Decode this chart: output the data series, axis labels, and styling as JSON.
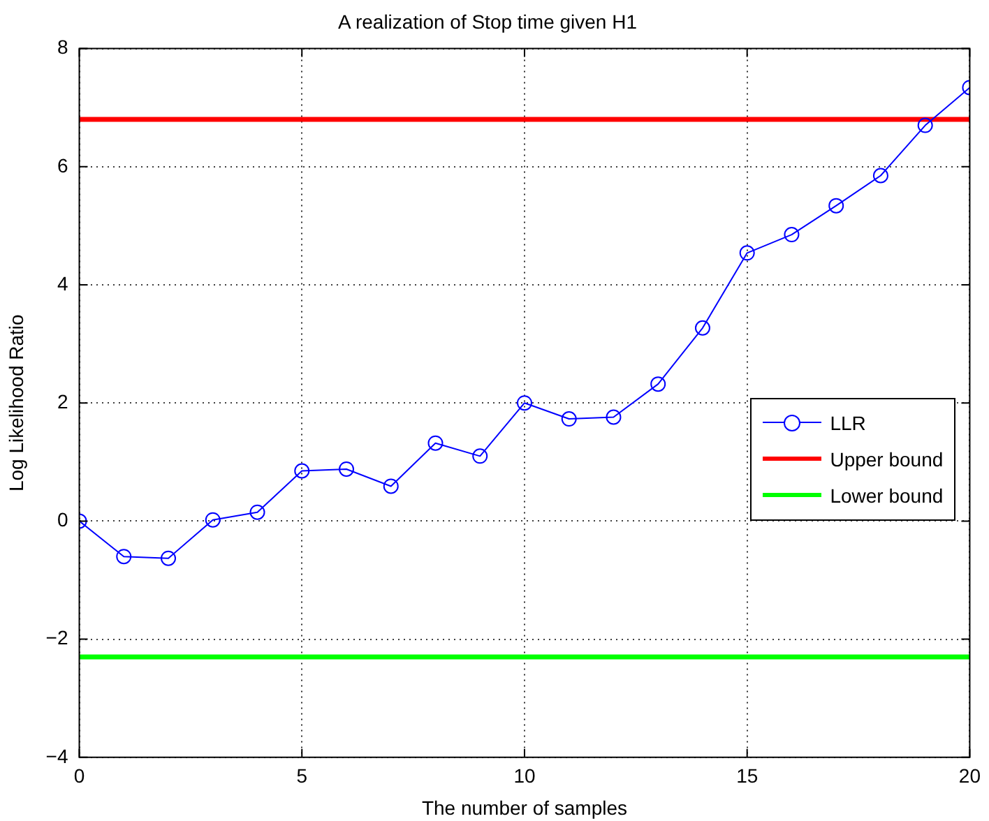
{
  "chart_data": {
    "type": "line",
    "title": "A realization of Stop time given H1",
    "xlabel": "The number of samples",
    "ylabel": "Log Likelihood Ratio",
    "x": [
      0,
      1,
      2,
      3,
      4,
      5,
      6,
      7,
      8,
      9,
      10,
      11,
      12,
      13,
      14,
      15,
      16,
      17,
      18,
      19,
      20
    ],
    "series": [
      {
        "name": "LLR",
        "color": "#0000ff",
        "marker": "circle",
        "values": [
          0,
          -0.6,
          -0.63,
          0.02,
          0.15,
          0.85,
          0.88,
          0.59,
          1.32,
          1.1,
          2.0,
          1.73,
          1.76,
          2.32,
          3.27,
          4.54,
          4.85,
          5.34,
          5.85,
          6.7,
          7.34
        ]
      }
    ],
    "ref_lines": [
      {
        "axis": "y",
        "value": 6.8,
        "label": "Upper bound",
        "color": "#ff0000"
      },
      {
        "axis": "y",
        "value": -2.3,
        "label": "Lower bound",
        "color": "#00ff00"
      }
    ],
    "xlim": [
      0,
      20
    ],
    "xticks": [
      0,
      5,
      10,
      15,
      20
    ],
    "ylim": [
      -4,
      8
    ],
    "yticks": [
      -4,
      -2,
      0,
      2,
      4,
      6,
      8
    ],
    "grid": true,
    "legend": "right",
    "line_style": "solid"
  }
}
